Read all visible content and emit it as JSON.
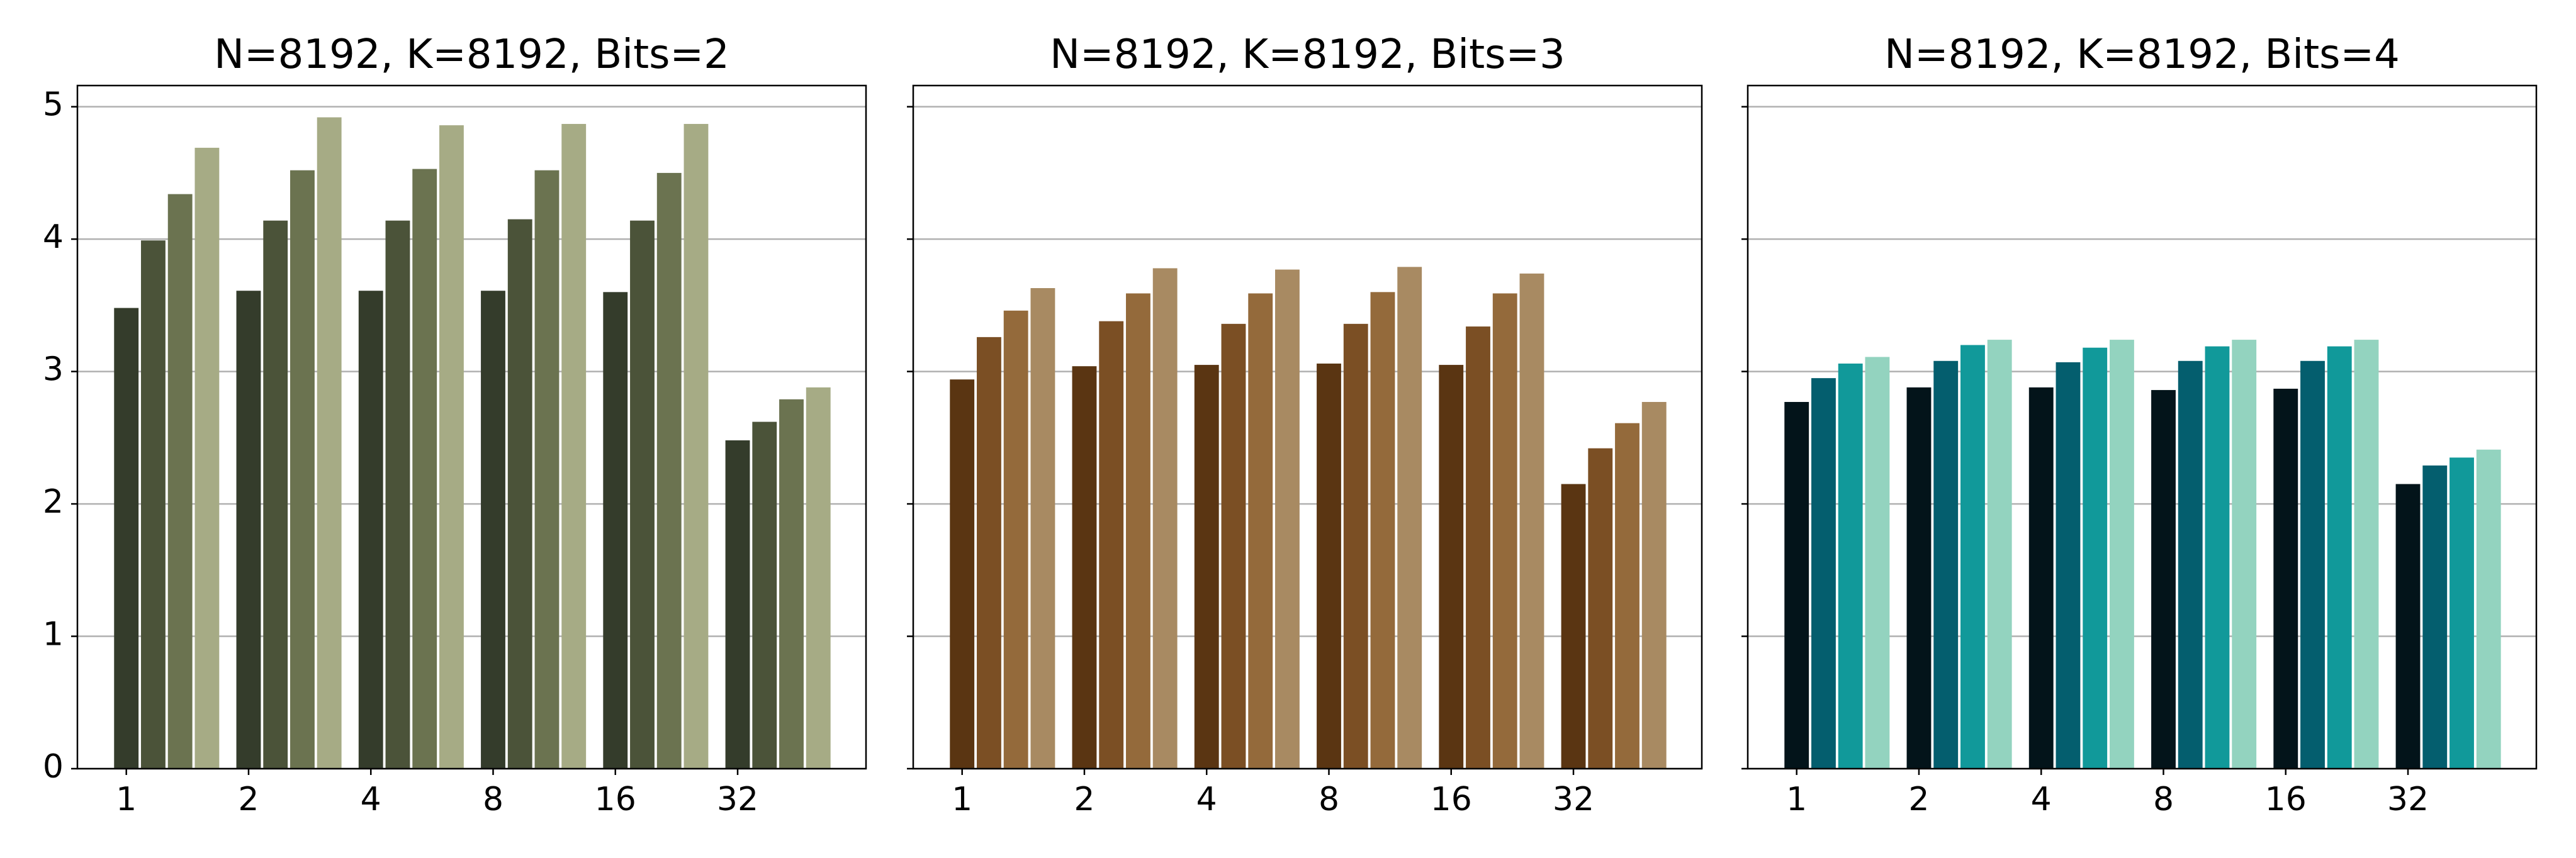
{
  "chart_data": [
    {
      "type": "bar",
      "title": "N=8192, K=8192, Bits=2",
      "categories": [
        "1",
        "2",
        "4",
        "8",
        "16",
        "32"
      ],
      "series": [
        {
          "color": "#343c2b",
          "values": [
            3.48,
            3.61,
            3.61,
            3.61,
            3.6,
            2.48
          ]
        },
        {
          "color": "#4b5339",
          "values": [
            3.99,
            4.14,
            4.14,
            4.15,
            4.14,
            2.62
          ]
        },
        {
          "color": "#6b7350",
          "values": [
            4.34,
            4.52,
            4.53,
            4.52,
            4.5,
            2.79
          ]
        },
        {
          "color": "#a6ab85",
          "values": [
            4.69,
            4.92,
            4.86,
            4.87,
            4.87,
            2.88
          ]
        }
      ],
      "ylim": [
        0,
        5.16
      ],
      "yticks": [
        0,
        1,
        2,
        3,
        4,
        5
      ],
      "grid": true
    },
    {
      "type": "bar",
      "title": "N=8192, K=8192, Bits=3",
      "categories": [
        "1",
        "2",
        "4",
        "8",
        "16",
        "32"
      ],
      "series": [
        {
          "color": "#5a3512",
          "values": [
            2.94,
            3.04,
            3.05,
            3.06,
            3.05,
            2.15
          ]
        },
        {
          "color": "#7b4f24",
          "values": [
            3.26,
            3.38,
            3.36,
            3.36,
            3.34,
            2.42
          ]
        },
        {
          "color": "#946a3b",
          "values": [
            3.46,
            3.59,
            3.59,
            3.6,
            3.59,
            2.61
          ]
        },
        {
          "color": "#a88a62",
          "values": [
            3.63,
            3.78,
            3.77,
            3.79,
            3.74,
            2.77
          ]
        }
      ],
      "grid": true
    },
    {
      "type": "bar",
      "title": "N=8192, K=8192, Bits=4",
      "categories": [
        "1",
        "2",
        "4",
        "8",
        "16",
        "32"
      ],
      "series": [
        {
          "color": "#03141a",
          "values": [
            2.77,
            2.88,
            2.88,
            2.86,
            2.87,
            2.15
          ]
        },
        {
          "color": "#045e6e",
          "values": [
            2.95,
            3.08,
            3.07,
            3.08,
            3.08,
            2.29
          ]
        },
        {
          "color": "#11999a",
          "values": [
            3.06,
            3.2,
            3.18,
            3.19,
            3.19,
            2.35
          ]
        },
        {
          "color": "#93d3bf",
          "values": [
            3.11,
            3.24,
            3.24,
            3.24,
            3.24,
            2.41
          ]
        }
      ],
      "grid": true
    }
  ]
}
